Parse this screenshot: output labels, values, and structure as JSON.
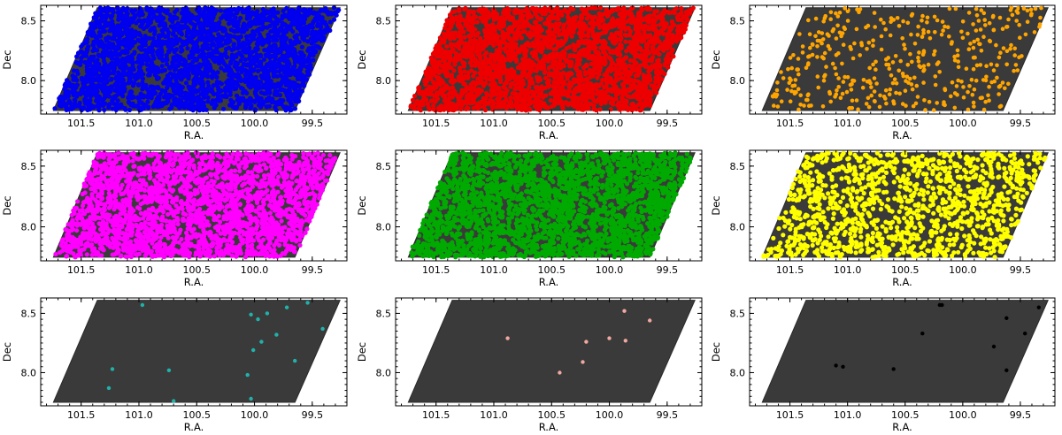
{
  "chart_data": [
    {
      "type": "scatter",
      "panel": "row1-col1",
      "color": "#0000ee",
      "density": "very-dense",
      "xlabel": "R.A.",
      "ylabel": "Dec",
      "xticks": [
        "101.5",
        "101.0",
        "100.5",
        "100.0",
        "99.5"
      ],
      "yticks": [
        "8.5",
        "8.0"
      ],
      "xlim": [
        101.85,
        99.2
      ],
      "ylim": [
        7.72,
        8.63
      ],
      "points": []
    },
    {
      "type": "scatter",
      "panel": "row1-col2",
      "color": "#ee0000",
      "density": "very-dense",
      "xlabel": "R.A.",
      "ylabel": "Dec",
      "xticks": [
        "101.5",
        "101.0",
        "100.5",
        "100.0",
        "99.5"
      ],
      "yticks": [
        "8.5",
        "8.0"
      ],
      "xlim": [
        101.85,
        99.2
      ],
      "ylim": [
        7.72,
        8.63
      ],
      "points": []
    },
    {
      "type": "scatter",
      "panel": "row1-col3",
      "color": "#ffa500",
      "density": "sparse",
      "xlabel": "R.A.",
      "ylabel": "Dec",
      "xticks": [
        "101.5",
        "101.0",
        "100.5",
        "100.0",
        "99.5"
      ],
      "yticks": [
        "8.5",
        "8.0"
      ],
      "xlim": [
        101.85,
        99.2
      ],
      "ylim": [
        7.72,
        8.63
      ],
      "points": []
    },
    {
      "type": "scatter",
      "panel": "row2-col1",
      "color": "#ff00ff",
      "density": "very-dense",
      "xlabel": "R.A.",
      "ylabel": "Dec",
      "xticks": [
        "101.5",
        "101.0",
        "100.5",
        "100.0",
        "99.5"
      ],
      "yticks": [
        "8.5",
        "8.0"
      ],
      "xlim": [
        101.85,
        99.2
      ],
      "ylim": [
        7.72,
        8.63
      ],
      "points": []
    },
    {
      "type": "scatter",
      "panel": "row2-col2",
      "color": "#00aa00",
      "density": "very-dense",
      "xlabel": "R.A.",
      "ylabel": "Dec",
      "xticks": [
        "101.5",
        "101.0",
        "100.5",
        "100.0",
        "99.5"
      ],
      "yticks": [
        "8.5",
        "8.0"
      ],
      "xlim": [
        101.85,
        99.2
      ],
      "ylim": [
        7.72,
        8.63
      ],
      "points": []
    },
    {
      "type": "scatter",
      "panel": "row2-col3",
      "color": "#ffff00",
      "density": "dense",
      "xlabel": "R.A.",
      "ylabel": "Dec",
      "xticks": [
        "101.5",
        "101.0",
        "100.5",
        "100.0",
        "99.5"
      ],
      "yticks": [
        "8.5",
        "8.0"
      ],
      "xlim": [
        101.85,
        99.2
      ],
      "ylim": [
        7.72,
        8.63
      ],
      "points": []
    },
    {
      "type": "scatter",
      "panel": "row3-col1",
      "color": "#20b2aa",
      "xlabel": "R.A.",
      "ylabel": "Dec",
      "xticks": [
        "101.5",
        "101.0",
        "100.5",
        "100.0",
        "99.5"
      ],
      "yticks": [
        "8.5",
        "8.0"
      ],
      "xlim": [
        101.85,
        99.2
      ],
      "ylim": [
        7.72,
        8.63
      ],
      "points": [
        [
          100.97,
          8.57
        ],
        [
          100.03,
          8.49
        ],
        [
          99.97,
          8.45
        ],
        [
          99.89,
          8.5
        ],
        [
          99.72,
          8.55
        ],
        [
          99.54,
          8.59
        ],
        [
          99.41,
          8.37
        ],
        [
          99.94,
          8.26
        ],
        [
          100.01,
          8.19
        ],
        [
          99.81,
          8.32
        ],
        [
          99.65,
          8.1
        ],
        [
          101.23,
          8.03
        ],
        [
          100.74,
          8.02
        ],
        [
          101.26,
          7.87
        ],
        [
          100.7,
          7.76
        ],
        [
          100.06,
          7.98
        ],
        [
          100.03,
          7.78
        ]
      ]
    },
    {
      "type": "scatter",
      "panel": "row3-col2",
      "color": "#f0a8a0",
      "xlabel": "R.A.",
      "ylabel": "Dec",
      "xticks": [
        "101.5",
        "101.0",
        "100.5",
        "100.0",
        "99.5"
      ],
      "yticks": [
        "8.5",
        "8.0"
      ],
      "xlim": [
        101.85,
        99.2
      ],
      "ylim": [
        7.72,
        8.63
      ],
      "points": [
        [
          99.87,
          8.52
        ],
        [
          99.65,
          8.44
        ],
        [
          100.88,
          8.29
        ],
        [
          100.2,
          8.26
        ],
        [
          100.0,
          8.29
        ],
        [
          99.86,
          8.27
        ],
        [
          100.23,
          8.09
        ],
        [
          100.43,
          8.0
        ]
      ]
    },
    {
      "type": "scatter",
      "panel": "row3-col3",
      "color": "#000000",
      "xlabel": "R.A.",
      "ylabel": "Dec",
      "xticks": [
        "101.5",
        "101.0",
        "100.5",
        "100.0",
        "99.5"
      ],
      "yticks": [
        "8.5",
        "8.0"
      ],
      "xlim": [
        101.85,
        99.2
      ],
      "ylim": [
        7.72,
        8.63
      ],
      "points": [
        [
          100.18,
          8.57
        ],
        [
          100.2,
          8.57
        ],
        [
          99.62,
          8.46
        ],
        [
          99.34,
          8.55
        ],
        [
          100.35,
          8.33
        ],
        [
          99.46,
          8.33
        ],
        [
          99.73,
          8.22
        ],
        [
          101.1,
          8.06
        ],
        [
          101.04,
          8.05
        ],
        [
          100.6,
          8.03
        ],
        [
          99.62,
          8.02
        ]
      ]
    }
  ]
}
